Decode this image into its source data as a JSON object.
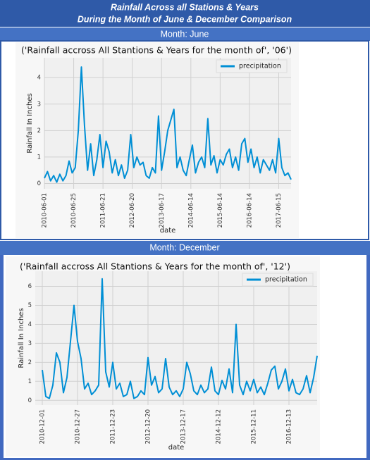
{
  "header": {
    "lines": [
      "Rainfall Across all Stations & Years",
      "During the Month of June & December Comparison"
    ]
  },
  "panels": [
    "Month: June",
    "Month: December"
  ],
  "chart_data": [
    {
      "type": "line",
      "title": "('Rainfall accross All Stantions & Years for the month of', '06')",
      "xlabel": "date",
      "ylabel": "Rainfall In Inches",
      "legend": "upper right",
      "grid": true,
      "series": [
        {
          "name": "precipitation",
          "color": "#008fd5",
          "values": [
            0.2,
            0.45,
            0.1,
            0.3,
            0.05,
            0.35,
            0.1,
            0.3,
            0.85,
            0.4,
            0.6,
            2.0,
            4.4,
            2.2,
            0.5,
            1.5,
            0.3,
            0.9,
            1.85,
            0.6,
            1.6,
            1.2,
            0.4,
            0.9,
            0.3,
            0.7,
            0.2,
            0.5,
            1.85,
            0.6,
            1.0,
            0.7,
            0.8,
            0.3,
            0.2,
            0.6,
            0.4,
            2.55,
            0.5,
            1.2,
            2.0,
            2.4,
            2.8,
            0.6,
            1.0,
            0.5,
            0.3,
            0.9,
            1.45,
            0.4,
            0.8,
            1.0,
            0.6,
            2.45,
            0.7,
            1.05,
            0.4,
            0.9,
            0.7,
            1.1,
            1.3,
            0.6,
            1.0,
            0.5,
            1.5,
            1.7,
            0.8,
            1.3,
            0.6,
            1.0,
            0.4,
            0.9,
            0.7,
            0.5,
            0.9,
            0.4,
            1.7,
            0.6,
            0.3,
            0.4,
            0.15
          ]
        }
      ],
      "xlim": [
        0,
        80
      ],
      "ylim": [
        -0.2,
        4.75
      ],
      "yticks": [
        0,
        1,
        2,
        3,
        4
      ],
      "xticks": [
        {
          "value": 0,
          "label": "2010-06-01"
        },
        {
          "value": 9.5,
          "label": "2010-06-25"
        },
        {
          "value": 19,
          "label": "2011-06-21"
        },
        {
          "value": 28.5,
          "label": "2012-06-20"
        },
        {
          "value": 38,
          "label": "2013-06-17"
        },
        {
          "value": 47.5,
          "label": "2014-06-14"
        },
        {
          "value": 57,
          "label": "2015-06-14"
        },
        {
          "value": 66.5,
          "label": "2016-06-14"
        },
        {
          "value": 76,
          "label": "2017-06-15"
        }
      ]
    },
    {
      "type": "line",
      "title": "('Rainfall accross All Stantions & Years for the month of', '12')",
      "xlabel": "date",
      "ylabel": "Rainfall In Inches",
      "legend": "upper right",
      "grid": true,
      "series": [
        {
          "name": "precipitation",
          "color": "#008fd5",
          "values": [
            1.6,
            0.2,
            0.1,
            0.8,
            2.5,
            2.0,
            0.4,
            1.2,
            3.1,
            5.0,
            3.1,
            2.2,
            0.6,
            0.9,
            0.3,
            0.5,
            0.8,
            6.4,
            1.5,
            0.7,
            2.0,
            0.6,
            0.9,
            0.2,
            0.3,
            1.0,
            0.1,
            0.2,
            0.5,
            0.3,
            2.25,
            0.8,
            1.25,
            0.4,
            0.6,
            2.2,
            0.7,
            0.3,
            0.5,
            0.2,
            0.6,
            2.0,
            1.4,
            0.5,
            0.3,
            0.8,
            0.4,
            0.6,
            1.75,
            0.5,
            0.3,
            1.05,
            0.6,
            1.65,
            0.4,
            4.0,
            0.8,
            0.3,
            1.0,
            0.5,
            1.1,
            0.4,
            0.7,
            0.3,
            0.9,
            1.6,
            1.8,
            0.6,
            1.0,
            1.65,
            0.5,
            1.1,
            0.4,
            0.3,
            0.6,
            1.3,
            0.4,
            1.2,
            2.35
          ]
        }
      ],
      "xlim": [
        -2,
        78
      ],
      "ylim": [
        -0.25,
        6.8
      ],
      "yticks": [
        0,
        1,
        2,
        3,
        4,
        5,
        6
      ],
      "xticks": [
        {
          "value": 0,
          "label": "2010-12-01"
        },
        {
          "value": 10,
          "label": "2010-12-27"
        },
        {
          "value": 20,
          "label": "2011-12-23"
        },
        {
          "value": 30,
          "label": "2012-12-20"
        },
        {
          "value": 40,
          "label": "2013-12-17"
        },
        {
          "value": 50,
          "label": "2014-12-12"
        },
        {
          "value": 60,
          "label": "2015-12-11"
        },
        {
          "value": 70,
          "label": "2016-12-13"
        }
      ]
    }
  ]
}
